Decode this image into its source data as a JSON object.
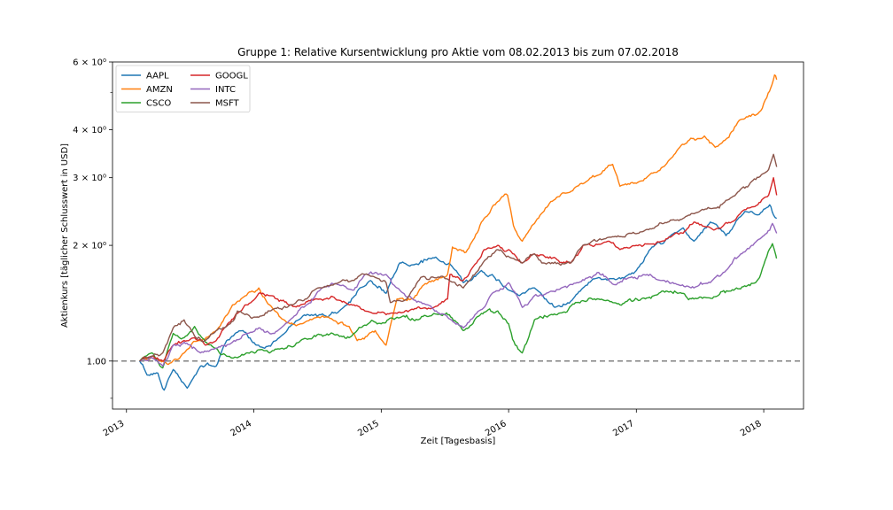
{
  "chart_data": {
    "type": "line",
    "title": "Gruppe 1: Relative Kursentwicklung pro Aktie vom 08.02.2013 bis zum 07.02.2018",
    "xlabel": "Zeit [Tagesbasis]",
    "ylabel": "Aktienkurs [täglicher Schlusswert in USD]",
    "y_scale": "log",
    "xlim": [
      "2012-11-22",
      "2018-04-25"
    ],
    "ylim": [
      0.75,
      6.0
    ],
    "x_ticks": [
      "2013",
      "2014",
      "2015",
      "2016",
      "2017",
      "2018"
    ],
    "x_tick_dates": [
      "2013-01-01",
      "2014-01-01",
      "2015-01-01",
      "2016-01-01",
      "2017-01-01",
      "2018-01-01"
    ],
    "y_major_ticks": [
      {
        "value": 1.0,
        "label": "1.00"
      },
      {
        "value": 2.0,
        "label": "2 × 10⁰"
      },
      {
        "value": 3.0,
        "label": "3 × 10⁰"
      },
      {
        "value": 4.0,
        "label": "4 × 10⁰"
      },
      {
        "value": 6.0,
        "label": "6 × 10⁰"
      }
    ],
    "y_minor_ticks": [
      0.8,
      5.0
    ],
    "reference_line": {
      "value": 1.0,
      "style": "dashed",
      "color": "#808080"
    },
    "legend": {
      "position": "top-left",
      "columns": 2
    },
    "grid": false,
    "series": [
      {
        "name": "AAPL",
        "color": "#1f77b4",
        "x": [
          "2013-02-08",
          "2013-03-01",
          "2013-04-01",
          "2013-04-19",
          "2013-05-15",
          "2013-06-24",
          "2013-08-01",
          "2013-09-15",
          "2013-10-15",
          "2013-12-01",
          "2014-01-10",
          "2014-02-01",
          "2014-03-15",
          "2014-05-01",
          "2014-06-15",
          "2014-08-01",
          "2014-09-15",
          "2014-11-01",
          "2014-12-01",
          "2015-01-15",
          "2015-02-23",
          "2015-04-01",
          "2015-05-20",
          "2015-06-15",
          "2015-07-15",
          "2015-08-24",
          "2015-09-15",
          "2015-10-15",
          "2015-11-15",
          "2016-01-01",
          "2016-02-01",
          "2016-03-15",
          "2016-05-12",
          "2016-06-27",
          "2016-08-01",
          "2016-09-15",
          "2016-11-01",
          "2017-01-01",
          "2017-02-15",
          "2017-04-01",
          "2017-05-15",
          "2017-06-15",
          "2017-08-01",
          "2017-09-15",
          "2017-11-08",
          "2017-12-15",
          "2018-01-18",
          "2018-01-29",
          "2018-02-07"
        ],
        "values": [
          1.0,
          0.92,
          0.93,
          0.84,
          0.95,
          0.85,
          0.97,
          0.97,
          1.13,
          1.2,
          1.1,
          1.08,
          1.15,
          1.27,
          1.32,
          1.3,
          1.38,
          1.55,
          1.62,
          1.5,
          1.8,
          1.78,
          1.85,
          1.83,
          1.8,
          1.6,
          1.62,
          1.72,
          1.68,
          1.53,
          1.48,
          1.55,
          1.38,
          1.43,
          1.55,
          1.65,
          1.63,
          1.72,
          1.98,
          2.08,
          2.22,
          2.05,
          2.3,
          2.12,
          2.45,
          2.4,
          2.55,
          2.4,
          2.35
        ]
      },
      {
        "name": "AMZN",
        "color": "#ff7f0e",
        "x": [
          "2013-02-08",
          "2013-03-15",
          "2013-05-01",
          "2013-06-15",
          "2013-08-01",
          "2013-09-15",
          "2013-11-01",
          "2013-12-15",
          "2014-01-15",
          "2014-02-15",
          "2014-04-15",
          "2014-05-15",
          "2014-07-01",
          "2014-08-15",
          "2014-10-01",
          "2014-10-24",
          "2014-12-15",
          "2015-01-15",
          "2015-02-15",
          "2015-04-01",
          "2015-05-15",
          "2015-07-10",
          "2015-07-24",
          "2015-09-01",
          "2015-10-15",
          "2015-12-01",
          "2015-12-29",
          "2016-01-15",
          "2016-02-09",
          "2016-03-15",
          "2016-05-01",
          "2016-07-15",
          "2016-09-15",
          "2016-10-25",
          "2016-11-15",
          "2017-01-01",
          "2017-03-01",
          "2017-04-15",
          "2017-06-06",
          "2017-07-15",
          "2017-08-15",
          "2017-10-01",
          "2017-10-27",
          "2017-12-15",
          "2018-01-10",
          "2018-01-25",
          "2018-02-01",
          "2018-02-07"
        ],
        "values": [
          1.0,
          1.02,
          0.98,
          1.05,
          1.13,
          1.2,
          1.4,
          1.5,
          1.55,
          1.4,
          1.25,
          1.25,
          1.3,
          1.28,
          1.23,
          1.13,
          1.2,
          1.1,
          1.45,
          1.45,
          1.6,
          1.68,
          1.98,
          1.92,
          2.3,
          2.6,
          2.7,
          2.25,
          2.05,
          2.28,
          2.6,
          2.85,
          3.05,
          3.25,
          2.85,
          2.9,
          3.1,
          3.4,
          3.8,
          3.85,
          3.6,
          3.95,
          4.25,
          4.4,
          4.85,
          5.25,
          5.55,
          5.4
        ]
      },
      {
        "name": "CSCO",
        "color": "#2ca02c",
        "x": [
          "2013-02-08",
          "2013-03-15",
          "2013-04-15",
          "2013-05-15",
          "2013-06-15",
          "2013-07-15",
          "2013-08-15",
          "2013-09-15",
          "2013-10-15",
          "2013-11-15",
          "2013-12-15",
          "2014-01-15",
          "2014-02-15",
          "2014-04-01",
          "2014-05-15",
          "2014-07-01",
          "2014-08-15",
          "2014-10-01",
          "2014-11-15",
          "2015-01-01",
          "2015-02-15",
          "2015-04-15",
          "2015-06-01",
          "2015-07-15",
          "2015-08-24",
          "2015-10-15",
          "2015-12-01",
          "2016-01-01",
          "2016-01-20",
          "2016-02-09",
          "2016-03-15",
          "2016-05-15",
          "2016-07-15",
          "2016-09-15",
          "2016-11-15",
          "2017-01-15",
          "2017-03-15",
          "2017-05-15",
          "2017-06-15",
          "2017-08-15",
          "2017-10-15",
          "2017-11-15",
          "2017-12-20",
          "2018-01-26",
          "2018-02-05",
          "2018-02-07"
        ],
        "values": [
          1.0,
          1.05,
          0.96,
          1.18,
          1.15,
          1.23,
          1.12,
          1.08,
          1.03,
          1.02,
          1.05,
          1.07,
          1.05,
          1.08,
          1.13,
          1.17,
          1.18,
          1.15,
          1.24,
          1.25,
          1.3,
          1.28,
          1.33,
          1.32,
          1.2,
          1.33,
          1.35,
          1.25,
          1.1,
          1.05,
          1.28,
          1.32,
          1.42,
          1.45,
          1.4,
          1.45,
          1.52,
          1.5,
          1.45,
          1.47,
          1.55,
          1.57,
          1.65,
          2.02,
          1.88,
          1.85
        ]
      },
      {
        "name": "GOOGL",
        "color": "#d62728",
        "x": [
          "2013-02-08",
          "2013-03-15",
          "2013-04-15",
          "2013-05-15",
          "2013-06-15",
          "2013-07-15",
          "2013-08-15",
          "2013-09-15",
          "2013-10-18",
          "2013-11-15",
          "2013-12-15",
          "2014-01-15",
          "2014-02-15",
          "2014-04-15",
          "2014-05-15",
          "2014-07-01",
          "2014-08-15",
          "2014-09-15",
          "2014-10-15",
          "2014-11-15",
          "2014-12-15",
          "2015-01-15",
          "2015-02-15",
          "2015-04-15",
          "2015-06-01",
          "2015-07-10",
          "2015-07-17",
          "2015-08-24",
          "2015-10-01",
          "2015-10-23",
          "2015-12-01",
          "2016-01-01",
          "2016-02-09",
          "2016-03-15",
          "2016-05-15",
          "2016-06-27",
          "2016-08-01",
          "2016-10-15",
          "2016-11-15",
          "2017-01-01",
          "2017-03-15",
          "2017-05-15",
          "2017-06-15",
          "2017-08-15",
          "2017-10-01",
          "2017-11-15",
          "2017-12-15",
          "2018-01-15",
          "2018-01-29",
          "2018-02-07"
        ],
        "values": [
          1.0,
          1.03,
          1.0,
          1.1,
          1.13,
          1.15,
          1.1,
          1.13,
          1.25,
          1.33,
          1.4,
          1.5,
          1.48,
          1.4,
          1.4,
          1.45,
          1.47,
          1.43,
          1.4,
          1.35,
          1.33,
          1.32,
          1.33,
          1.38,
          1.38,
          1.45,
          1.68,
          1.62,
          1.8,
          1.95,
          2.0,
          1.95,
          1.8,
          1.9,
          1.85,
          1.8,
          2.0,
          2.05,
          1.95,
          2.0,
          2.05,
          2.15,
          2.3,
          2.2,
          2.3,
          2.5,
          2.55,
          2.7,
          3.0,
          2.7
        ]
      },
      {
        "name": "INTC",
        "color": "#9467bd",
        "x": [
          "2013-02-08",
          "2013-03-15",
          "2013-04-15",
          "2013-05-15",
          "2013-06-15",
          "2013-08-01",
          "2013-09-15",
          "2013-11-01",
          "2013-12-15",
          "2014-01-15",
          "2014-03-01",
          "2014-04-15",
          "2014-06-01",
          "2014-07-15",
          "2014-09-01",
          "2014-10-15",
          "2014-11-15",
          "2014-12-15",
          "2015-01-15",
          "2015-02-15",
          "2015-04-01",
          "2015-05-15",
          "2015-07-01",
          "2015-08-24",
          "2015-10-01",
          "2015-11-15",
          "2016-01-01",
          "2016-02-09",
          "2016-03-15",
          "2016-05-01",
          "2016-07-15",
          "2016-09-15",
          "2016-11-01",
          "2016-12-15",
          "2017-02-01",
          "2017-03-15",
          "2017-05-01",
          "2017-06-15",
          "2017-08-01",
          "2017-09-15",
          "2017-10-27",
          "2017-12-01",
          "2018-01-10",
          "2018-01-26",
          "2018-02-07"
        ],
        "values": [
          1.0,
          1.02,
          0.97,
          1.1,
          1.12,
          1.05,
          1.08,
          1.12,
          1.18,
          1.22,
          1.18,
          1.28,
          1.4,
          1.55,
          1.58,
          1.53,
          1.68,
          1.7,
          1.68,
          1.55,
          1.45,
          1.4,
          1.32,
          1.22,
          1.33,
          1.5,
          1.6,
          1.38,
          1.48,
          1.52,
          1.6,
          1.7,
          1.58,
          1.65,
          1.68,
          1.62,
          1.58,
          1.55,
          1.6,
          1.72,
          1.9,
          2.0,
          2.15,
          2.28,
          2.15
        ]
      },
      {
        "name": "MSFT",
        "color": "#8c564b",
        "x": [
          "2013-02-08",
          "2013-03-15",
          "2013-04-15",
          "2013-05-15",
          "2013-06-15",
          "2013-07-19",
          "2013-08-15",
          "2013-09-15",
          "2013-10-25",
          "2013-11-15",
          "2013-12-15",
          "2014-01-15",
          "2014-02-15",
          "2014-04-15",
          "2014-06-01",
          "2014-07-15",
          "2014-09-01",
          "2014-10-15",
          "2014-11-15",
          "2014-12-15",
          "2015-01-15",
          "2015-01-27",
          "2015-03-15",
          "2015-04-24",
          "2015-06-01",
          "2015-07-15",
          "2015-08-24",
          "2015-10-23",
          "2015-12-01",
          "2016-01-15",
          "2016-02-09",
          "2016-03-15",
          "2016-04-22",
          "2016-06-27",
          "2016-08-01",
          "2016-10-21",
          "2016-12-15",
          "2017-02-01",
          "2017-04-01",
          "2017-05-15",
          "2017-07-01",
          "2017-08-15",
          "2017-09-15",
          "2017-10-27",
          "2017-12-01",
          "2018-01-15",
          "2018-01-29",
          "2018-02-07"
        ],
        "values": [
          1.0,
          1.03,
          1.05,
          1.22,
          1.28,
          1.15,
          1.13,
          1.2,
          1.25,
          1.35,
          1.32,
          1.3,
          1.35,
          1.4,
          1.45,
          1.55,
          1.6,
          1.62,
          1.68,
          1.65,
          1.6,
          1.42,
          1.45,
          1.65,
          1.65,
          1.62,
          1.55,
          1.82,
          1.95,
          1.85,
          1.8,
          1.9,
          1.8,
          1.8,
          2.0,
          2.1,
          2.15,
          2.2,
          2.3,
          2.35,
          2.45,
          2.5,
          2.62,
          2.8,
          2.95,
          3.15,
          3.45,
          3.2
        ]
      }
    ]
  }
}
